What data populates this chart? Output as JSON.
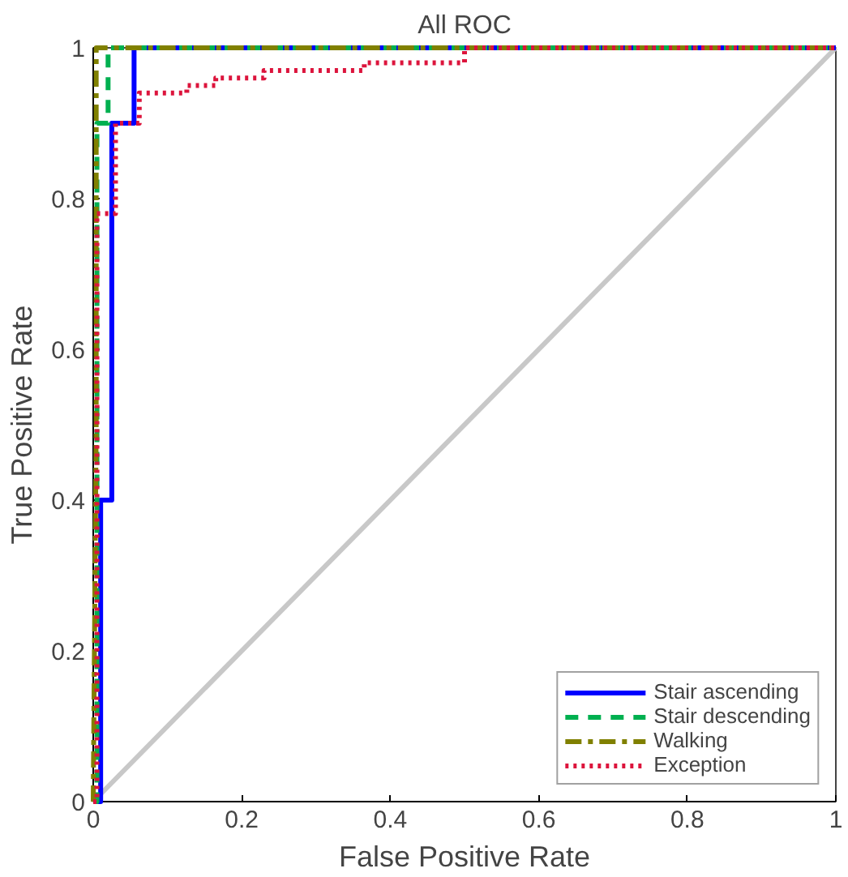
{
  "chart_data": {
    "type": "step",
    "title": "All ROC",
    "xlabel": "False Positive Rate",
    "ylabel": "True Positive Rate",
    "xlim": [
      0,
      1
    ],
    "ylim": [
      0,
      1
    ],
    "xticks": [
      0,
      {
        "value": 0.2,
        "label": "0.2"
      },
      {
        "value": 0.4,
        "label": "0.4"
      },
      {
        "value": 0.6,
        "label": "0.6"
      },
      {
        "value": 0.8,
        "label": "0.8"
      },
      1
    ],
    "yticks": [
      0,
      {
        "value": 0.2,
        "label": "0.2"
      },
      {
        "value": 0.4,
        "label": "0.4"
      },
      {
        "value": 0.6,
        "label": "0.6"
      },
      {
        "value": 0.8,
        "label": "0.8"
      },
      1
    ],
    "grid": false,
    "legend": "bottom right",
    "series": [
      {
        "type": "line",
        "color": "#c8c8c8",
        "line_style": "solid",
        "x": [
          0,
          1
        ],
        "values": [
          0,
          1
        ]
      },
      {
        "name": "Stair ascending",
        "color": "#0000ff",
        "line_style": "solid",
        "x": [
          0,
          0.01,
          0.01,
          0.025,
          0.025,
          0.055,
          0.055,
          1
        ],
        "values": [
          0,
          0,
          0.4,
          0.4,
          0.9,
          0.9,
          1,
          1
        ]
      },
      {
        "name": "Stair descending",
        "color": "#00b050",
        "line_style": "dashed",
        "x": [
          0,
          0.005,
          0.005,
          0.02,
          0.02,
          1
        ],
        "values": [
          0,
          0,
          0.9,
          0.9,
          1,
          1
        ]
      },
      {
        "name": "Walking",
        "type": "line",
        "color": "#808000",
        "line_style": "dashdot",
        "x": [
          0,
          0.004,
          0.004,
          0.5,
          1
        ],
        "values": [
          0,
          0.5,
          1,
          1,
          1
        ]
      },
      {
        "name": "Exception",
        "color": "#dc143c",
        "line_style": "dotted",
        "x": [
          0,
          0.005,
          0.005,
          0.03,
          0.03,
          0.062,
          0.062,
          0.126,
          0.126,
          0.165,
          0.165,
          0.23,
          0.23,
          0.365,
          0.365,
          0.5,
          0.5,
          1
        ],
        "values": [
          0,
          0,
          0.78,
          0.78,
          0.9,
          0.9,
          0.94,
          0.94,
          0.95,
          0.95,
          0.96,
          0.96,
          0.97,
          0.97,
          0.98,
          0.98,
          1,
          1
        ]
      }
    ]
  }
}
